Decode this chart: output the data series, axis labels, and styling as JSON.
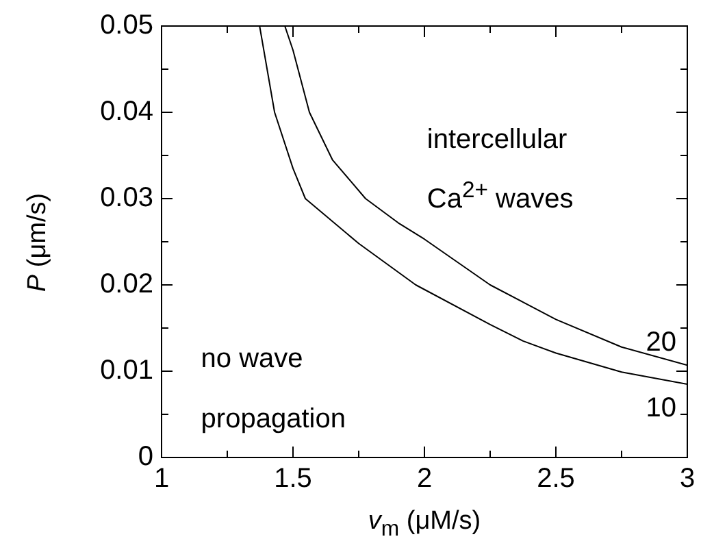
{
  "chart_data": {
    "type": "line",
    "xlabel": "v$_{m}$ (μM/s)",
    "ylabel": "P (μm/s)",
    "xlim": [
      1,
      3
    ],
    "ylim": [
      0,
      0.05
    ],
    "xticks": [
      1,
      {
        "value": 1.25,
        "label": null
      },
      1.5,
      {
        "value": 1.75,
        "label": null
      },
      2,
      {
        "value": 2.25,
        "label": null
      },
      2.5,
      {
        "value": 2.75,
        "label": null
      },
      3
    ],
    "yticks": [
      0,
      {
        "value": 0.005,
        "label": null
      },
      0.01,
      {
        "value": 0.015,
        "label": null
      },
      0.02,
      {
        "value": 0.025,
        "label": null
      },
      0.03,
      {
        "value": 0.035,
        "label": null
      },
      0.04,
      {
        "value": 0.045,
        "label": null
      },
      0.05
    ],
    "grid": false,
    "legend": "right",
    "marker": "none",
    "line_style": "solid",
    "annotations": [
      "intercellular",
      "Ca$^{2+}$ waves",
      "no wave",
      "propagation"
    ],
    "series": [
      {
        "name": "20",
        "color": "#000000",
        "x": [
          1.469,
          1.5,
          1.5625,
          1.65,
          1.776,
          1.9,
          2,
          2.25,
          2.5,
          2.75,
          3
        ],
        "values": [
          0.05,
          0.0472,
          0.04,
          0.0345,
          0.03,
          0.0272,
          0.0253,
          0.02,
          0.016,
          0.0128,
          0.0107
        ]
      },
      {
        "name": "10",
        "color": "#000000",
        "x": [
          1.373,
          1.43,
          1.5,
          1.547,
          1.75,
          1.967,
          2.25,
          2.375,
          2.5,
          2.75,
          3
        ],
        "values": [
          0.05,
          0.04,
          0.0335,
          0.03,
          0.0248,
          0.02,
          0.0154,
          0.0135,
          0.0121,
          0.0099,
          0.0085
        ]
      }
    ]
  }
}
